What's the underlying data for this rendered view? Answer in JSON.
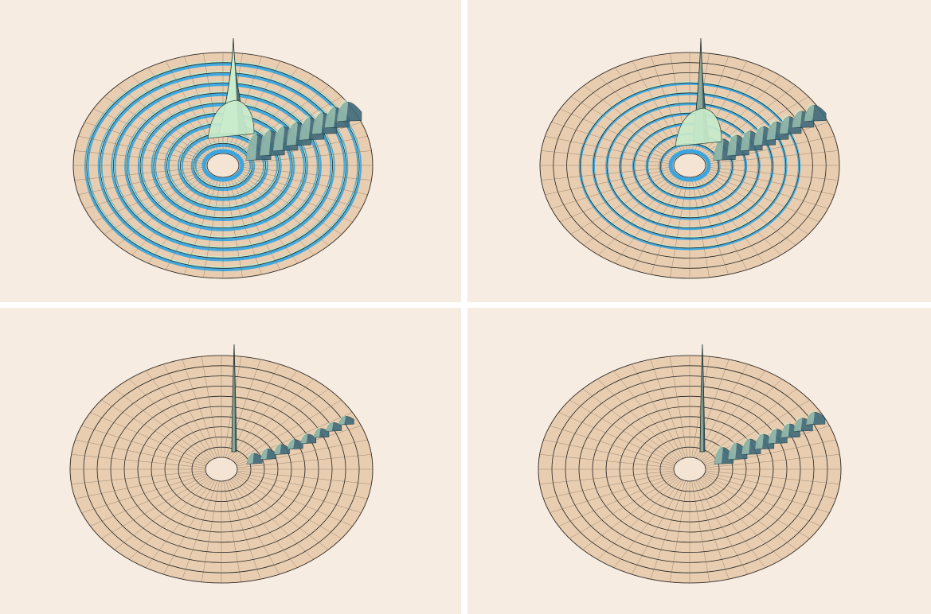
{
  "figure": {
    "colors": {
      "background": "#f7ece2",
      "disk": "#e8cdb0",
      "grid": "#222222",
      "groove_blue": "#39a6e0",
      "sheet_light": "#c9eccc",
      "sheet_dark": "#3f6a7a"
    },
    "panels": [
      {
        "name": "top-left",
        "ring_width": 1.0,
        "peak_height": 1.0,
        "rings_visible": 9,
        "wave": "strong"
      },
      {
        "name": "top-right",
        "ring_width": 0.35,
        "peak_height": 1.0,
        "rings_visible": 7,
        "wave": "medium"
      },
      {
        "name": "bottom-left",
        "ring_width": 0.0,
        "peak_height": 0.95,
        "rings_visible": 8,
        "wave": "weak"
      },
      {
        "name": "bottom-right",
        "ring_width": 0.0,
        "peak_height": 0.95,
        "rings_visible": 8,
        "wave": "medium-weak"
      }
    ]
  }
}
